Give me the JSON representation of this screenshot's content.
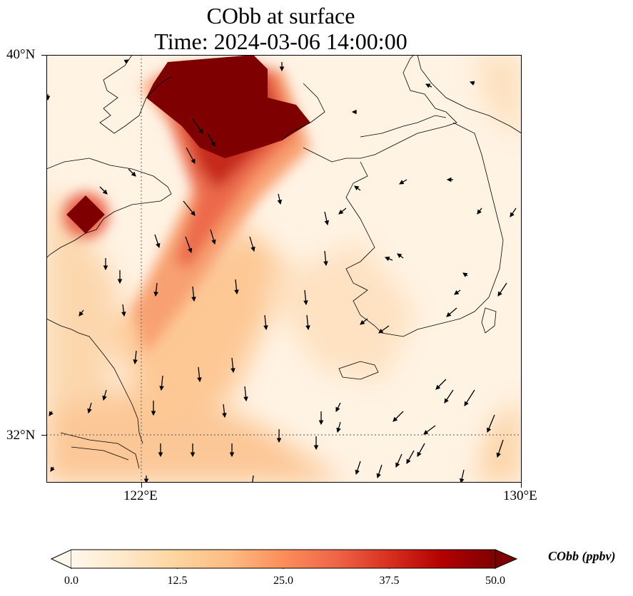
{
  "title": {
    "line1": "CObb at surface",
    "line2": "Time: 2024-03-06 14:00:00"
  },
  "map": {
    "lon_range": [
      119.5,
      130
    ],
    "lat_range": [
      31,
      40
    ],
    "lon_ticks": [
      {
        "value": 122,
        "label": "122°E"
      },
      {
        "value": 130,
        "label": "130°E"
      }
    ],
    "lat_ticks": [
      {
        "value": 40,
        "label": "40°N"
      },
      {
        "value": 32,
        "label": "32°N"
      }
    ],
    "gridlines": "dotted",
    "background_color": "#fff3e4",
    "coastline_color": "#000000",
    "wind_arrow_color": "#000000"
  },
  "colorbar": {
    "label": "CObb (ppbv)",
    "min": 0.0,
    "max": 50.0,
    "extend": "both",
    "colormap": [
      "#fff7ec",
      "#fee8c8",
      "#fdd49e",
      "#fdbb84",
      "#fc8d59",
      "#ef6548",
      "#d7301f",
      "#b30000",
      "#7f0000"
    ],
    "ticks": [
      "0.0",
      "12.5",
      "25.0",
      "37.5",
      "50.0"
    ],
    "tick_values": [
      0,
      12.5,
      25,
      37.5,
      50
    ]
  }
}
